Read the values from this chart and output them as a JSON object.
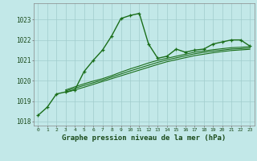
{
  "title": "Graphe pression niveau de la mer (hPa)",
  "bg_color": "#c2e8e8",
  "grid_color": "#a0cccc",
  "line_color": "#1a6e1a",
  "ylim": [
    1017.8,
    1023.8
  ],
  "yticks": [
    1018,
    1019,
    1020,
    1021,
    1022,
    1023
  ],
  "main_series": [
    1018.3,
    1018.7,
    1019.35,
    1019.45,
    1019.55,
    1020.45,
    1021.0,
    1021.5,
    1022.2,
    1023.05,
    1023.2,
    1023.3,
    1021.8,
    1021.1,
    1021.2,
    1021.55,
    1021.4,
    1021.5,
    1021.55,
    1021.8,
    1021.9,
    1022.0,
    1022.0,
    1021.7
  ],
  "trend_line1": [
    null,
    null,
    null,
    1019.55,
    1019.7,
    1019.85,
    1019.98,
    1020.1,
    1020.25,
    1020.42,
    1020.58,
    1020.72,
    1020.87,
    1021.0,
    1021.1,
    1021.2,
    1021.3,
    1021.4,
    1021.46,
    1021.52,
    1021.57,
    1021.62,
    1021.64,
    1021.67
  ],
  "trend_line2": [
    null,
    null,
    null,
    1019.5,
    1019.63,
    1019.77,
    1019.9,
    1020.03,
    1020.18,
    1020.33,
    1020.48,
    1020.62,
    1020.76,
    1020.9,
    1021.02,
    1021.12,
    1021.22,
    1021.32,
    1021.39,
    1021.45,
    1021.5,
    1021.55,
    1021.57,
    1021.6
  ],
  "trend_line3": [
    null,
    null,
    null,
    1019.42,
    1019.55,
    1019.68,
    1019.82,
    1019.96,
    1020.1,
    1020.24,
    1020.38,
    1020.52,
    1020.66,
    1020.8,
    1020.93,
    1021.03,
    1021.13,
    1021.23,
    1021.3,
    1021.37,
    1021.43,
    1021.48,
    1021.51,
    1021.54
  ]
}
